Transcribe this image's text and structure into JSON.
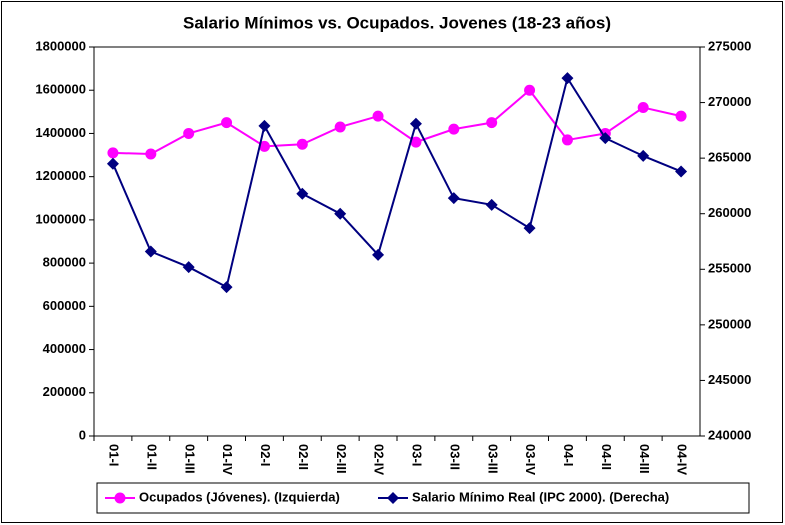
{
  "chart_data": {
    "type": "line",
    "title": "Salario Mínimos vs. Ocupados. Jovenes (18-23 años)",
    "categories": [
      "01-I",
      "01-II",
      "01-III",
      "01-IV",
      "02-I",
      "02-II",
      "02-III",
      "02-IV",
      "03-I",
      "03-II",
      "03-III",
      "03-IV",
      "04-I",
      "04-II",
      "04-III",
      "04-IV"
    ],
    "series": [
      {
        "name": "Ocupados (Jóvenes). (Izquierda)",
        "color": "#ff00ff",
        "marker": "circle",
        "values": [
          1310000,
          1305000,
          1400000,
          1450000,
          1340000,
          1350000,
          1430000,
          1480000,
          1360000,
          1420000,
          1450000,
          1600000,
          1370000,
          1400000,
          1520000,
          1480000
        ]
      },
      {
        "name": "Salario Mínimo Real (IPC 2000). (Derecha)",
        "color": "#000080",
        "marker": "diamond",
        "axis": "y2",
        "values": [
          264500,
          256600,
          255200,
          253400,
          267900,
          261800,
          260000,
          256300,
          268100,
          261400,
          260800,
          258700,
          272200,
          266800,
          265200,
          263800
        ]
      }
    ],
    "ylim": [
      0,
      1800000
    ],
    "yticks": [
      0,
      200000,
      400000,
      600000,
      800000,
      1000000,
      1200000,
      1400000,
      1600000,
      1800000
    ],
    "y2lim": [
      240000,
      275000
    ],
    "y2ticks": [
      240000,
      245000,
      250000,
      255000,
      260000,
      265000,
      270000,
      275000
    ],
    "legend": "bottom"
  }
}
